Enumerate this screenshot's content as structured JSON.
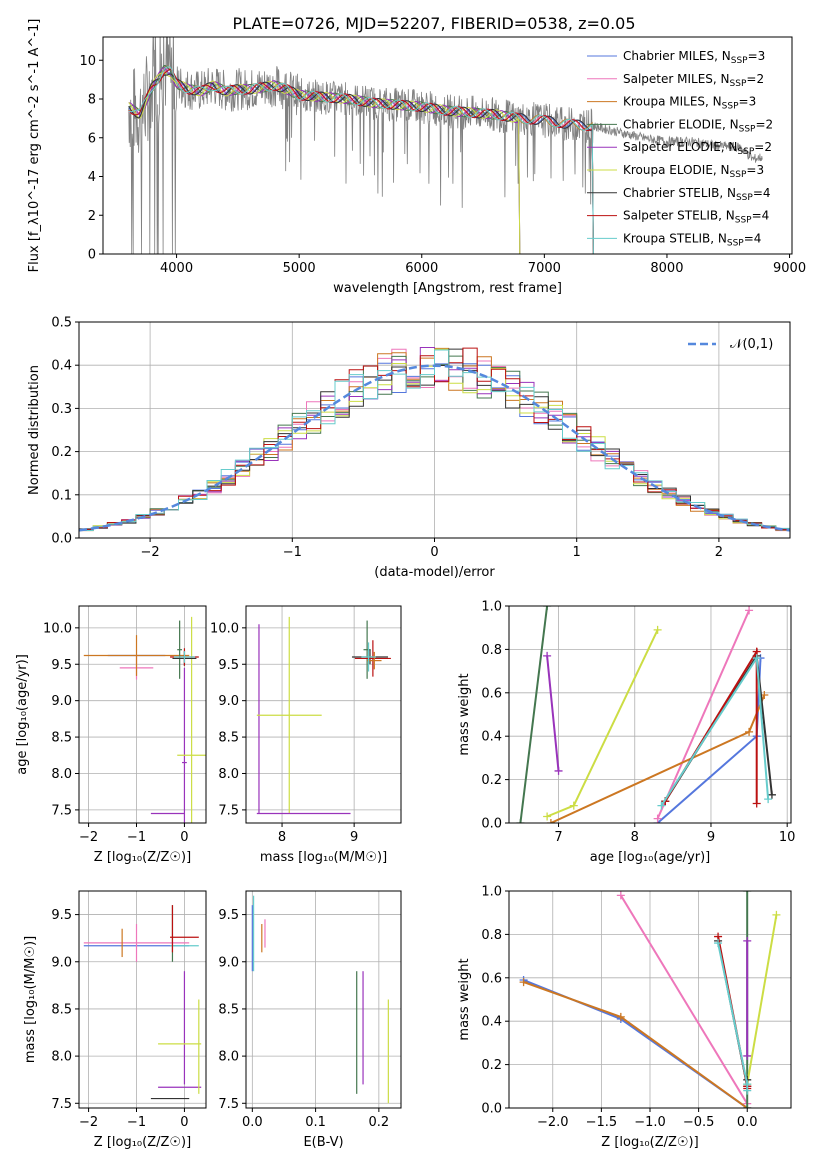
{
  "title": "PLATE=0726, MJD=52207, FIBERID=0538, z=0.05",
  "colors": {
    "Chabrier MILES": "#5577dd",
    "Salpeter MILES": "#ee77bb",
    "Kroupa MILES": "#cc7722",
    "Chabrier ELODIE": "#44774f",
    "Salpeter ELODIE": "#9933bb",
    "Kroupa ELODIE": "#ccdd44",
    "Chabrier STELIB": "#333333",
    "Salpeter STELIB": "#bb1111",
    "Kroupa STELIB": "#66cccc",
    "data": "#808080",
    "normal": "#5588dd"
  },
  "chart_data": [
    {
      "type": "line",
      "xlabel": "wavelength [Angstrom, rest frame]",
      "ylabel": "Flux [f_λ10^-17 erg cm^-2 s^-1 A^-1]",
      "xlim": [
        3400,
        9020
      ],
      "ylim": [
        0,
        11.2
      ],
      "xticks": [
        4000,
        5000,
        6000,
        7000,
        8000,
        9000
      ],
      "yticks": [
        0,
        2,
        4,
        6,
        8,
        10
      ],
      "grid": false,
      "legend_position": "top-right",
      "data_series": {
        "name": "",
        "x": [
          3610,
          3700,
          3800,
          3900,
          3950,
          4000,
          4100,
          4200,
          4300,
          4400,
          4500,
          4600,
          4700,
          4800,
          4900,
          5000,
          5200,
          5400,
          5600,
          5800,
          6000,
          6200,
          6400,
          6600,
          6800,
          7000,
          7200,
          7400,
          7600,
          7800,
          8000,
          8200,
          8400,
          8600,
          8700,
          8780
        ],
        "y": [
          7.6,
          7.2,
          8.6,
          9.5,
          9.4,
          8.8,
          8.5,
          8.4,
          8.7,
          8.4,
          8.5,
          8.5,
          8.6,
          8.7,
          8.5,
          8.2,
          8.1,
          8.0,
          7.8,
          7.7,
          7.6,
          7.4,
          7.3,
          7.2,
          7.0,
          6.9,
          6.7,
          6.6,
          6.3,
          6.0,
          5.8,
          5.8,
          5.6,
          5.5,
          4.9,
          5.0
        ]
      },
      "models": [
        {
          "name": "Chabrier MILES",
          "nssp": "3",
          "x_max": 7400
        },
        {
          "name": "Salpeter MILES",
          "nssp": "2",
          "x_max": 7400
        },
        {
          "name": "Kroupa MILES",
          "nssp": "3",
          "x_max": 7400
        },
        {
          "name": "Chabrier ELODIE",
          "nssp": "2",
          "x_max": 6800
        },
        {
          "name": "Salpeter ELODIE",
          "nssp": "2",
          "x_max": 6800
        },
        {
          "name": "Kroupa ELODIE",
          "nssp": "3",
          "x_max": 6800
        },
        {
          "name": "Chabrier STELIB",
          "nssp": "4",
          "x_max": 7400
        },
        {
          "name": "Salpeter STELIB",
          "nssp": "4",
          "x_max": 7400
        },
        {
          "name": "Kroupa STELIB",
          "nssp": "4",
          "x_max": 7400
        }
      ]
    },
    {
      "type": "area",
      "xlabel": "(data-model)/error",
      "ylabel": "Normed distribution",
      "xlim": [
        -2.5,
        2.5
      ],
      "ylim": [
        0,
        0.5
      ],
      "xticks": [
        -2,
        -1,
        0,
        1,
        2
      ],
      "yticks": [
        0.0,
        0.1,
        0.2,
        0.3,
        0.4,
        0.5
      ],
      "grid": true,
      "legend_position": "top-right",
      "legend_label": "𝒩(0,1)",
      "normal": {
        "mean": 0,
        "sigma": 1
      },
      "bin_width": 0.1
    },
    {
      "type": "scatter",
      "xlabel": "Z [log₁₀(Z/Z☉)]",
      "ylabel": "age  [log₁₀(age/yr)]",
      "xlim": [
        -2.2,
        0.45
      ],
      "ylim": [
        7.32,
        10.3
      ],
      "xticks": [
        -2,
        -1,
        0
      ],
      "yticks": [
        7.5,
        8.0,
        8.5,
        9.0,
        9.5,
        10.0
      ],
      "grid": true,
      "crosses": [
        {
          "model": "Chabrier MILES",
          "x": -1.0,
          "y": 9.62,
          "xerr": 0.6,
          "yerr": 0.0
        },
        {
          "model": "Salpeter MILES",
          "x": -1.0,
          "y": 9.45,
          "xerr": 0.35,
          "yerr": 0.16
        },
        {
          "model": "Kroupa MILES",
          "x": -1.0,
          "y": 9.62,
          "xerr": 1.1,
          "yerr": 0.28
        },
        {
          "model": "Chabrier ELODIE",
          "x": -0.1,
          "y": 9.7,
          "xerr": 0.05,
          "yerr": 0.4
        },
        {
          "model": "Salpeter ELODIE",
          "x": 0.0,
          "y": 8.15,
          "xerr": 0.05,
          "yerr": 1.3
        },
        {
          "model": "Kroupa ELODIE",
          "x": 0.15,
          "y": 8.25,
          "xerr": 0.3,
          "yerr": 1.9
        },
        {
          "model": "Chabrier STELIB",
          "x": 0.0,
          "y": 9.58,
          "xerr": 0.25,
          "yerr": 0.1
        },
        {
          "model": "Salpeter STELIB",
          "x": 0.0,
          "y": 9.6,
          "xerr": 0.3,
          "yerr": 0.12
        },
        {
          "model": "Kroupa STELIB",
          "x": 0.0,
          "y": 9.6,
          "xerr": 0.22,
          "yerr": 0.08
        },
        {
          "model": "Salpeter ELODIE",
          "x": -0.35,
          "y": 7.45,
          "xerr": 0.35,
          "yerr": 0.0
        }
      ]
    },
    {
      "type": "scatter",
      "xlabel": "mass [log₁₀(M/M☉)]",
      "ylabel": "",
      "xlim": [
        7.5,
        9.65
      ],
      "ylim": [
        7.32,
        10.3
      ],
      "xticks": [
        8,
        9
      ],
      "yticks": [
        7.5,
        8.0,
        8.5,
        9.0,
        9.5,
        10.0
      ],
      "grid": true,
      "crosses": [
        {
          "model": "Salpeter ELODIE",
          "x": 7.68,
          "y": 8.75,
          "xerr": 0.0,
          "yerr": 1.3
        },
        {
          "model": "Kroupa ELODIE",
          "x": 8.1,
          "y": 8.8,
          "xerr": 0.45,
          "yerr": 1.35
        },
        {
          "model": "Salpeter ELODIE",
          "x": 8.3,
          "y": 7.45,
          "xerr": 0.65,
          "yerr": 0.0
        },
        {
          "model": "Chabrier ELODIE",
          "x": 9.18,
          "y": 9.7,
          "xerr": 0.05,
          "yerr": 0.4
        },
        {
          "model": "Chabrier STELIB",
          "x": 9.22,
          "y": 9.6,
          "xerr": 0.25,
          "yerr": 0.1
        },
        {
          "model": "Salpeter STELIB",
          "x": 9.26,
          "y": 9.58,
          "xerr": 0.25,
          "yerr": 0.25
        },
        {
          "model": "Kroupa MILES",
          "x": 9.28,
          "y": 9.55,
          "xerr": 0.1,
          "yerr": 0.12
        },
        {
          "model": "Kroupa STELIB",
          "x": 9.2,
          "y": 9.6,
          "xerr": 0.1,
          "yerr": 0.2
        }
      ]
    },
    {
      "type": "line",
      "xlabel": "age  [log₁₀(age/yr)]",
      "ylabel": "mass weight",
      "xlim": [
        6.35,
        10.05
      ],
      "ylim": [
        0,
        1.0
      ],
      "xticks": [
        7,
        8,
        9,
        10
      ],
      "yticks": [
        0.0,
        0.2,
        0.4,
        0.6,
        0.8,
        1.0
      ],
      "grid": true,
      "series": [
        {
          "model": "Chabrier MILES",
          "x": [
            8.3,
            9.6,
            9.65
          ],
          "y": [
            0.0,
            0.4,
            0.76
          ]
        },
        {
          "model": "Salpeter MILES",
          "x": [
            8.3,
            9.5
          ],
          "y": [
            0.02,
            0.98
          ]
        },
        {
          "model": "Kroupa MILES",
          "x": [
            6.9,
            9.5,
            9.7
          ],
          "y": [
            0.0,
            0.42,
            0.59
          ]
        },
        {
          "model": "Chabrier ELODIE",
          "x": [
            6.5,
            6.85
          ],
          "y": [
            0.0,
            1.0
          ]
        },
        {
          "model": "Salpeter ELODIE",
          "x": [
            6.85,
            7.0
          ],
          "y": [
            0.77,
            0.24
          ]
        },
        {
          "model": "Kroupa ELODIE",
          "x": [
            6.85,
            7.2,
            8.3
          ],
          "y": [
            0.03,
            0.08,
            0.89
          ]
        },
        {
          "model": "Chabrier STELIB",
          "x": [
            8.4,
            9.6,
            9.8
          ],
          "y": [
            0.1,
            0.77,
            0.13
          ]
        },
        {
          "model": "Salpeter STELIB",
          "x": [
            8.4,
            9.6,
            9.6
          ],
          "y": [
            0.1,
            0.79,
            0.09
          ]
        },
        {
          "model": "Kroupa STELIB",
          "x": [
            8.35,
            9.6,
            9.75
          ],
          "y": [
            0.08,
            0.76,
            0.11
          ]
        }
      ]
    },
    {
      "type": "scatter",
      "xlabel": "Z [log₁₀(Z/Z☉)]",
      "ylabel": "mass [log₁₀(M/M☉)]",
      "xlim": [
        -2.2,
        0.45
      ],
      "ylim": [
        7.45,
        9.75
      ],
      "xticks": [
        -2,
        -1,
        0
      ],
      "yticks": [
        7.5,
        8.0,
        8.5,
        9.0,
        9.5
      ],
      "grid": true,
      "crosses": [
        {
          "model": "Chabrier MILES",
          "x": -1.0,
          "y": 9.17,
          "xerr": 1.1,
          "yerr": 0.0
        },
        {
          "model": "Salpeter MILES",
          "x": -1.0,
          "y": 9.2,
          "xerr": 1.1,
          "yerr": 0.2
        },
        {
          "model": "Kroupa MILES",
          "x": -1.3,
          "y": 9.2,
          "xerr": 0.0,
          "yerr": 0.15
        },
        {
          "model": "Chabrier ELODIE",
          "x": -0.25,
          "y": 9.3,
          "xerr": 0.0,
          "yerr": 0.3
        },
        {
          "model": "Salpeter ELODIE",
          "x": -0.1,
          "y": 7.67,
          "xerr": 0.45,
          "yerr": 0.0
        },
        {
          "model": "Salpeter ELODIE",
          "x": 0.0,
          "y": 8.3,
          "xerr": 0.0,
          "yerr": 0.6
        },
        {
          "model": "Kroupa ELODIE",
          "x": -0.1,
          "y": 8.13,
          "xerr": 0.45,
          "yerr": 0.0
        },
        {
          "model": "Kroupa ELODIE",
          "x": 0.3,
          "y": 8.1,
          "xerr": 0.0,
          "yerr": 0.5
        },
        {
          "model": "Chabrier STELIB",
          "x": -0.3,
          "y": 7.55,
          "xerr": 0.4,
          "yerr": 0.0
        },
        {
          "model": "Salpeter STELIB",
          "x": 0.0,
          "y": 9.26,
          "xerr": 0.3,
          "yerr": 0.0
        },
        {
          "model": "Kroupa STELIB",
          "x": 0.0,
          "y": 9.17,
          "xerr": 0.3,
          "yerr": 0.0
        },
        {
          "model": "Salpeter STELIB",
          "x": -0.25,
          "y": 9.35,
          "xerr": 0.0,
          "yerr": 0.25
        }
      ]
    },
    {
      "type": "scatter",
      "xlabel": "E(B-V)",
      "ylabel": "",
      "xlim": [
        -0.01,
        0.235
      ],
      "ylim": [
        7.45,
        9.75
      ],
      "xticks": [
        0.0,
        0.1,
        0.2
      ],
      "yticks": [
        7.5,
        8.0,
        8.5,
        9.0,
        9.5
      ],
      "grid": true,
      "crosses": [
        {
          "model": "Chabrier MILES",
          "x": 0.0,
          "y": 9.25,
          "xerr": 0.0,
          "yerr": 0.35
        },
        {
          "model": "Kroupa STELIB",
          "x": 0.002,
          "y": 9.3,
          "xerr": 0.0,
          "yerr": 0.4
        },
        {
          "model": "Kroupa MILES",
          "x": 0.015,
          "y": 9.25,
          "xerr": 0.0,
          "yerr": 0.15
        },
        {
          "model": "Salpeter MILES",
          "x": 0.02,
          "y": 9.3,
          "xerr": 0.0,
          "yerr": 0.15
        },
        {
          "model": "Chabrier ELODIE",
          "x": 0.165,
          "y": 8.25,
          "xerr": 0.0,
          "yerr": 0.65
        },
        {
          "model": "Salpeter ELODIE",
          "x": 0.175,
          "y": 8.3,
          "xerr": 0.0,
          "yerr": 0.6
        },
        {
          "model": "Kroupa ELODIE",
          "x": 0.215,
          "y": 8.05,
          "xerr": 0.0,
          "yerr": 0.55
        }
      ]
    },
    {
      "type": "line",
      "xlabel": "Z [log₁₀(Z/Z☉)]",
      "ylabel": "mass weight",
      "xlim": [
        -2.45,
        0.45
      ],
      "ylim": [
        0,
        1.0
      ],
      "xticks": [
        -2.0,
        -1.5,
        -1.0,
        -0.5,
        0.0
      ],
      "yticks": [
        0.0,
        0.2,
        0.4,
        0.6,
        0.8,
        1.0
      ],
      "grid": true,
      "series": [
        {
          "model": "Chabrier MILES",
          "x": [
            -2.3,
            -1.3,
            0.0
          ],
          "y": [
            0.59,
            0.41,
            0.0
          ]
        },
        {
          "model": "Salpeter MILES",
          "x": [
            -1.3,
            0.0
          ],
          "y": [
            0.98,
            0.02
          ]
        },
        {
          "model": "Kroupa MILES",
          "x": [
            -2.3,
            -1.3,
            0.0
          ],
          "y": [
            0.58,
            0.42,
            0.0
          ]
        },
        {
          "model": "Chabrier ELODIE",
          "x": [
            0.0,
            0.0
          ],
          "y": [
            0.0,
            1.0
          ]
        },
        {
          "model": "Salpeter ELODIE",
          "x": [
            0.0,
            0.0
          ],
          "y": [
            0.77,
            0.24
          ]
        },
        {
          "model": "Kroupa ELODIE",
          "x": [
            0.0,
            0.3
          ],
          "y": [
            0.11,
            0.89
          ]
        },
        {
          "model": "Chabrier STELIB",
          "x": [
            -0.3,
            0.0,
            0.0
          ],
          "y": [
            0.77,
            0.1,
            0.13
          ]
        },
        {
          "model": "Salpeter STELIB",
          "x": [
            -0.3,
            0.0,
            0.0
          ],
          "y": [
            0.79,
            0.1,
            0.09
          ]
        },
        {
          "model": "Kroupa STELIB",
          "x": [
            -0.3,
            0.0,
            0.0
          ],
          "y": [
            0.76,
            0.11,
            0.08
          ]
        }
      ]
    }
  ]
}
